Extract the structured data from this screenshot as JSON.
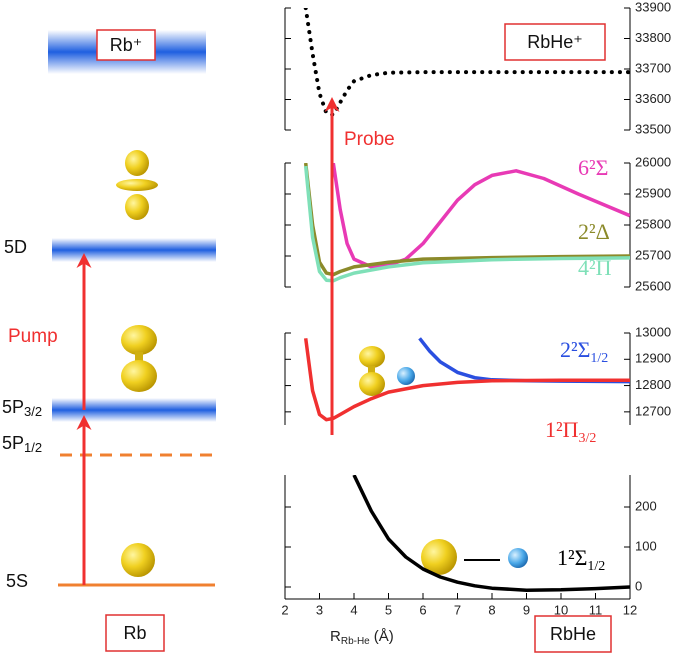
{
  "diagram": {
    "ion_label": "Rb⁺",
    "levels": [
      "5D",
      "5P",
      "5P",
      "5S"
    ],
    "level_subscripts": [
      "3/2",
      "1/2"
    ],
    "pump": "Pump",
    "probe": "Probe",
    "atom_label": "Rb",
    "molecule_label": "RbHe",
    "molecule_ion_label": "RbHe⁺"
  },
  "chart_data": [
    {
      "type": "line",
      "xlim": [
        2,
        12
      ],
      "ylim": [
        33500,
        33900
      ],
      "yticks": [
        33500,
        33600,
        33700,
        33800,
        33900
      ],
      "series": [
        {
          "name": null,
          "color": "#000000",
          "dash": "dotted",
          "x": [
            2.6,
            2.8,
            3.0,
            3.2,
            3.4,
            3.6,
            3.8,
            4.0,
            4.5,
            5,
            6,
            8,
            10,
            12
          ],
          "values": [
            33900,
            33750,
            33620,
            33555,
            33550,
            33590,
            33630,
            33660,
            33680,
            33688,
            33690,
            33690,
            33690,
            33690
          ]
        }
      ]
    },
    {
      "type": "line",
      "xlim": [
        2,
        12
      ],
      "ylim": [
        25600,
        26000
      ],
      "yticks": [
        25600,
        25700,
        25800,
        25900,
        26000
      ],
      "series": [
        {
          "name": "6²Σ",
          "color": "#e83ab5",
          "x": [
            3.4,
            3.6,
            3.8,
            4.0,
            4.5,
            5,
            5.5,
            6,
            6.5,
            7,
            7.5,
            8,
            8.7,
            9.5,
            10.5,
            12
          ],
          "values": [
            26000,
            25850,
            25740,
            25690,
            25665,
            25670,
            25690,
            25740,
            25810,
            25880,
            25930,
            25960,
            25975,
            25950,
            25900,
            25830
          ]
        },
        {
          "name": "2²Δ",
          "color": "#8b8a2a",
          "x": [
            2.6,
            2.8,
            3.0,
            3.2,
            3.4,
            3.6,
            4,
            5,
            6,
            8,
            10,
            12
          ],
          "values": [
            26000,
            25800,
            25680,
            25645,
            25640,
            25650,
            25665,
            25680,
            25690,
            25695,
            25698,
            25700
          ]
        },
        {
          "name": "4²Π",
          "color": "#7fe0b8",
          "x": [
            2.6,
            2.8,
            3.0,
            3.2,
            3.4,
            3.6,
            4,
            5,
            6,
            8,
            10,
            12
          ],
          "values": [
            25990,
            25760,
            25650,
            25622,
            25620,
            25630,
            25645,
            25665,
            25678,
            25688,
            25692,
            25694
          ]
        }
      ]
    },
    {
      "type": "line",
      "xlim": [
        2,
        12
      ],
      "ylim": [
        12650,
        13000
      ],
      "yticks": [
        12700,
        12800,
        12900,
        13000
      ],
      "series": [
        {
          "name": "2²Σ",
          "subscript": "1/2",
          "color": "#2a4fe0",
          "x": [
            5.9,
            6.2,
            6.5,
            7,
            7.5,
            8,
            9,
            10,
            12
          ],
          "values": [
            12980,
            12930,
            12890,
            12850,
            12830,
            12822,
            12818,
            12817,
            12815
          ]
        },
        {
          "name": "1²Π",
          "subscript": "3/2",
          "color": "#f03030",
          "x": [
            2.6,
            2.8,
            3.0,
            3.2,
            3.4,
            3.6,
            4,
            4.5,
            5,
            6,
            7,
            8,
            10,
            12
          ],
          "values": [
            12980,
            12780,
            12690,
            12670,
            12675,
            12690,
            12720,
            12750,
            12775,
            12800,
            12812,
            12818,
            12820,
            12820
          ]
        }
      ]
    },
    {
      "type": "line",
      "xlim": [
        2,
        12
      ],
      "ylim": [
        -30,
        280
      ],
      "yticks": [
        0,
        100,
        200
      ],
      "xticks": [
        2,
        3,
        4,
        5,
        6,
        7,
        8,
        9,
        10,
        11,
        12
      ],
      "xlabel": "R",
      "xlabel_subscript": "Rb-He",
      "xlabel_unit": "(Å)",
      "series": [
        {
          "name": "1²Σ",
          "subscript": "1/2",
          "color": "#000000",
          "x": [
            4,
            4.5,
            5,
            5.5,
            6,
            6.5,
            7,
            7.5,
            8,
            9,
            10,
            11,
            12
          ],
          "values": [
            280,
            190,
            120,
            75,
            45,
            25,
            12,
            3,
            -3,
            -8,
            -7,
            -4,
            0
          ]
        }
      ]
    }
  ]
}
